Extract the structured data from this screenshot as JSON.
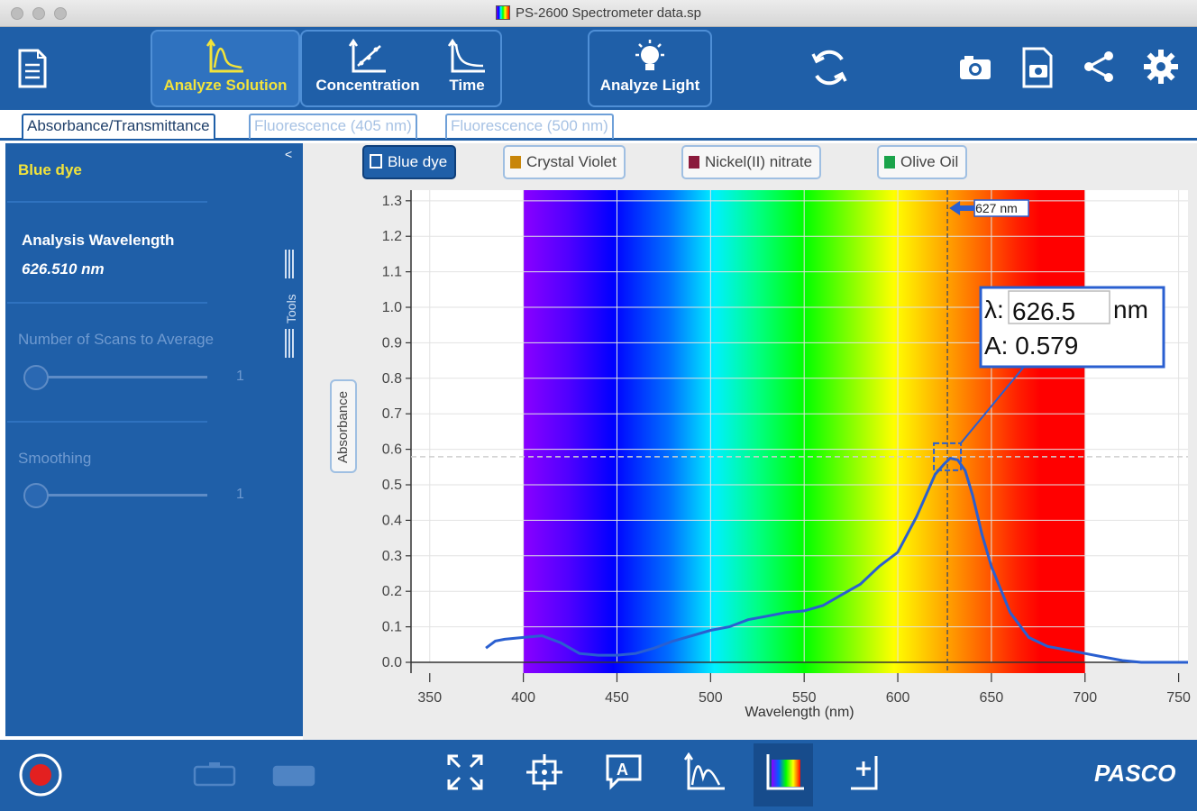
{
  "window": {
    "title": "PS-2600 Spectrometer data.sp"
  },
  "toolbar": {
    "modes": [
      {
        "label": "Analyze Solution",
        "icon": "analyze-solution-icon",
        "active": true
      },
      {
        "label": "Concentration",
        "icon": "concentration-icon",
        "active": false
      },
      {
        "label": "Time",
        "icon": "time-icon",
        "active": false
      },
      {
        "label": "Analyze Light",
        "icon": "lightbulb-icon",
        "active": false
      }
    ],
    "icons": [
      "document-icon",
      "sync-icon",
      "camera-icon",
      "snapshot-icon",
      "share-icon",
      "gear-icon"
    ]
  },
  "tabs": [
    {
      "label": "Absorbance/Transmittance",
      "active": true
    },
    {
      "label": "Fluorescence (405 nm)",
      "active": false
    },
    {
      "label": "Fluorescence (500 nm)",
      "active": false
    }
  ],
  "sidebar": {
    "sample": "Blue dye",
    "analysis_label": "Analysis Wavelength",
    "analysis_value": "626.510 nm",
    "scans_label": "Number of Scans to Average",
    "scans_value": "1",
    "smoothing_label": "Smoothing",
    "smoothing_value": "1",
    "tools_label": "Tools",
    "collapse_glyph": "<"
  },
  "legend": [
    {
      "label": "Blue dye",
      "color": "#1f5fa8",
      "selected": true
    },
    {
      "label": "Crystal Violet",
      "color": "#c8860a",
      "selected": false
    },
    {
      "label": "Nickel(II) nitrate",
      "color": "#8b1a3c",
      "selected": false
    },
    {
      "label": "Olive Oil",
      "color": "#1aa34a",
      "selected": false
    }
  ],
  "readout": {
    "lambda_label": "λ:",
    "lambda_value": "626.5",
    "lambda_unit": "nm",
    "absorbance": "A: 0.579",
    "marker_label": "627 nm"
  },
  "chart_data": {
    "type": "line",
    "xlabel": "Wavelength (nm)",
    "ylabel": "Absorbance",
    "xlim": [
      340,
      755
    ],
    "ylim": [
      0.0,
      1.33
    ],
    "xticks": [
      350,
      400,
      450,
      500,
      550,
      600,
      650,
      700,
      750
    ],
    "yticks": [
      0.0,
      0.1,
      0.2,
      0.3,
      0.4,
      0.5,
      0.6,
      0.7,
      0.8,
      0.9,
      1.0,
      1.1,
      1.2,
      1.3
    ],
    "grid": true,
    "spectrum_band": [
      400,
      700
    ],
    "cursor": {
      "x": 626.5,
      "y": 0.579
    },
    "series": [
      {
        "name": "Blue dye",
        "color": "#2a5fd0",
        "x": [
          380,
          385,
          390,
          400,
          410,
          420,
          430,
          440,
          450,
          460,
          470,
          480,
          490,
          500,
          510,
          520,
          530,
          540,
          550,
          560,
          570,
          580,
          590,
          600,
          605,
          610,
          615,
          620,
          625,
          628,
          632,
          636,
          640,
          645,
          650,
          660,
          670,
          680,
          690,
          700,
          710,
          720,
          730,
          740,
          755
        ],
        "y": [
          0.04,
          0.06,
          0.065,
          0.07,
          0.075,
          0.055,
          0.025,
          0.02,
          0.02,
          0.025,
          0.04,
          0.06,
          0.075,
          0.09,
          0.1,
          0.12,
          0.13,
          0.14,
          0.145,
          0.16,
          0.19,
          0.22,
          0.27,
          0.31,
          0.36,
          0.41,
          0.47,
          0.53,
          0.56,
          0.575,
          0.57,
          0.54,
          0.47,
          0.36,
          0.27,
          0.14,
          0.07,
          0.045,
          0.035,
          0.025,
          0.015,
          0.005,
          0.0,
          0.0,
          0.0
        ]
      }
    ]
  }
}
